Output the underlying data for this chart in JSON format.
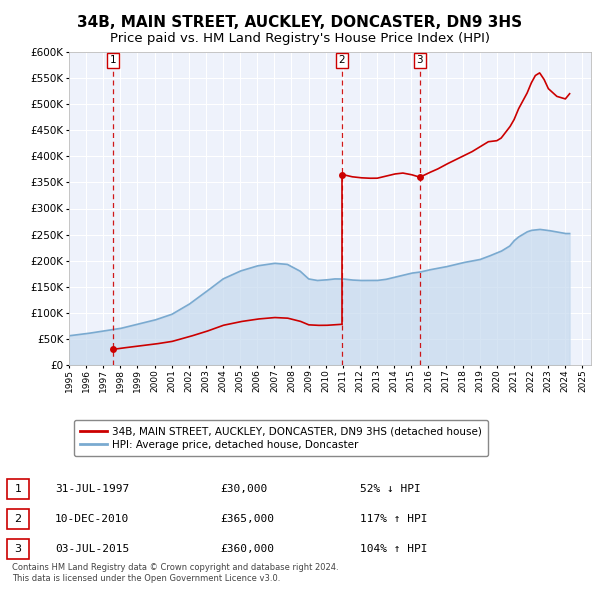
{
  "title": "34B, MAIN STREET, AUCKLEY, DONCASTER, DN9 3HS",
  "subtitle": "Price paid vs. HM Land Registry's House Price Index (HPI)",
  "title_fontsize": 11,
  "subtitle_fontsize": 9.5,
  "background_color": "#ffffff",
  "plot_bg_color": "#eef2fb",
  "grid_color": "#ffffff",
  "ylim": [
    0,
    600000
  ],
  "yticks": [
    0,
    50000,
    100000,
    150000,
    200000,
    250000,
    300000,
    350000,
    400000,
    450000,
    500000,
    550000,
    600000
  ],
  "xlim_start": 1995.0,
  "xlim_end": 2025.5,
  "property_color": "#cc0000",
  "hpi_color": "#7aaad0",
  "hpi_fill_color": "#c5d9ee",
  "transaction_dates": [
    1997.58,
    2010.94,
    2015.5
  ],
  "transaction_prices": [
    30000,
    365000,
    360000
  ],
  "transaction_labels": [
    "1",
    "2",
    "3"
  ],
  "legend_property": "34B, MAIN STREET, AUCKLEY, DONCASTER, DN9 3HS (detached house)",
  "legend_hpi": "HPI: Average price, detached house, Doncaster",
  "table_rows": [
    [
      "1",
      "31-JUL-1997",
      "£30,000",
      "52% ↓ HPI"
    ],
    [
      "2",
      "10-DEC-2010",
      "£365,000",
      "117% ↑ HPI"
    ],
    [
      "3",
      "03-JUL-2015",
      "£360,000",
      "104% ↑ HPI"
    ]
  ],
  "footnote": "Contains HM Land Registry data © Crown copyright and database right 2024.\nThis data is licensed under the Open Government Licence v3.0.",
  "hpi_anchors_x": [
    1995.0,
    1996.0,
    1997.0,
    1998.0,
    1999.0,
    2000.0,
    2001.0,
    2002.0,
    2003.0,
    2004.0,
    2005.0,
    2006.0,
    2007.0,
    2007.75,
    2008.5,
    2009.0,
    2009.5,
    2010.0,
    2010.5,
    2011.0,
    2011.5,
    2012.0,
    2012.5,
    2013.0,
    2013.5,
    2014.0,
    2014.5,
    2015.0,
    2015.5,
    2016.0,
    2016.5,
    2017.0,
    2017.5,
    2018.0,
    2018.5,
    2019.0,
    2019.5,
    2020.0,
    2020.25,
    2020.75,
    2021.0,
    2021.25,
    2021.75,
    2022.0,
    2022.5,
    2023.0,
    2023.5,
    2024.0,
    2024.25
  ],
  "hpi_anchors_y": [
    56000,
    60000,
    65000,
    70000,
    78000,
    86000,
    97000,
    116000,
    140000,
    165000,
    180000,
    190000,
    195000,
    193000,
    180000,
    165000,
    162000,
    163000,
    165000,
    165000,
    163000,
    162000,
    162000,
    162000,
    164000,
    168000,
    172000,
    176000,
    178000,
    182000,
    185000,
    188000,
    192000,
    196000,
    199000,
    202000,
    208000,
    215000,
    218000,
    228000,
    238000,
    245000,
    255000,
    258000,
    260000,
    258000,
    255000,
    252000,
    252000
  ],
  "prop_seg1_x": [
    1997.58,
    1998.0,
    1999.0,
    2000.0,
    2001.0,
    2002.0,
    2003.0,
    2004.0,
    2005.0,
    2006.0,
    2007.0,
    2007.75,
    2008.5,
    2009.0,
    2009.5,
    2010.0,
    2010.5,
    2010.94
  ],
  "prop_seg1_y": [
    30000,
    32000,
    36000,
    40000,
    45000,
    54000,
    64000,
    76000,
    83000,
    88000,
    91000,
    90000,
    84000,
    77000,
    76000,
    76000,
    77000,
    78000
  ],
  "prop_seg2_x": [
    2010.94,
    2011.0,
    2011.5,
    2012.0,
    2012.5,
    2013.0,
    2013.5,
    2014.0,
    2014.5,
    2015.0,
    2015.5
  ],
  "prop_seg2_y": [
    365000,
    365000,
    361000,
    359000,
    358000,
    358000,
    362000,
    366000,
    368000,
    365000,
    360000
  ],
  "prop_seg3_x": [
    2015.5,
    2016.0,
    2016.5,
    2017.0,
    2017.5,
    2018.0,
    2018.5,
    2019.0,
    2019.5,
    2020.0,
    2020.25,
    2020.75,
    2021.0,
    2021.25,
    2021.75,
    2022.0,
    2022.25,
    2022.5,
    2022.75,
    2023.0,
    2023.5,
    2024.0,
    2024.25
  ],
  "prop_seg3_y": [
    360000,
    368000,
    375000,
    384000,
    392000,
    400000,
    408000,
    418000,
    428000,
    430000,
    435000,
    456000,
    470000,
    490000,
    520000,
    540000,
    555000,
    560000,
    548000,
    530000,
    515000,
    510000,
    520000
  ]
}
